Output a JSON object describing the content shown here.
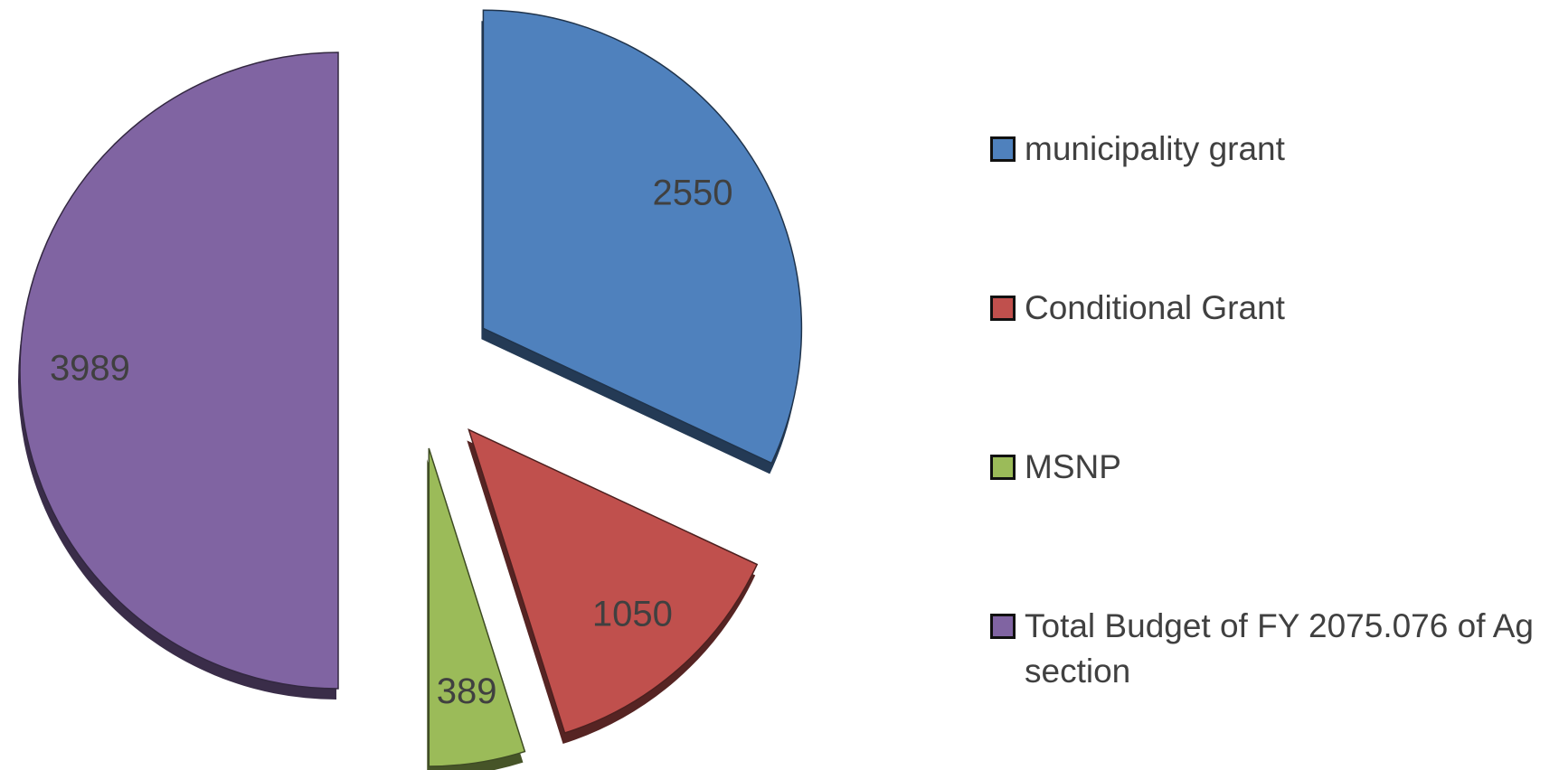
{
  "chart_data": {
    "type": "pie",
    "exploded": true,
    "categories": [
      "municipality grant",
      "Conditional Grant",
      "MSNP",
      "Total Budget of FY 2075.076 of Ag section"
    ],
    "values": [
      2550,
      1050,
      389,
      3989
    ],
    "colors": [
      "#4f81bd",
      "#c0504d",
      "#9bbb59",
      "#8064a2"
    ],
    "legend": "right"
  }
}
